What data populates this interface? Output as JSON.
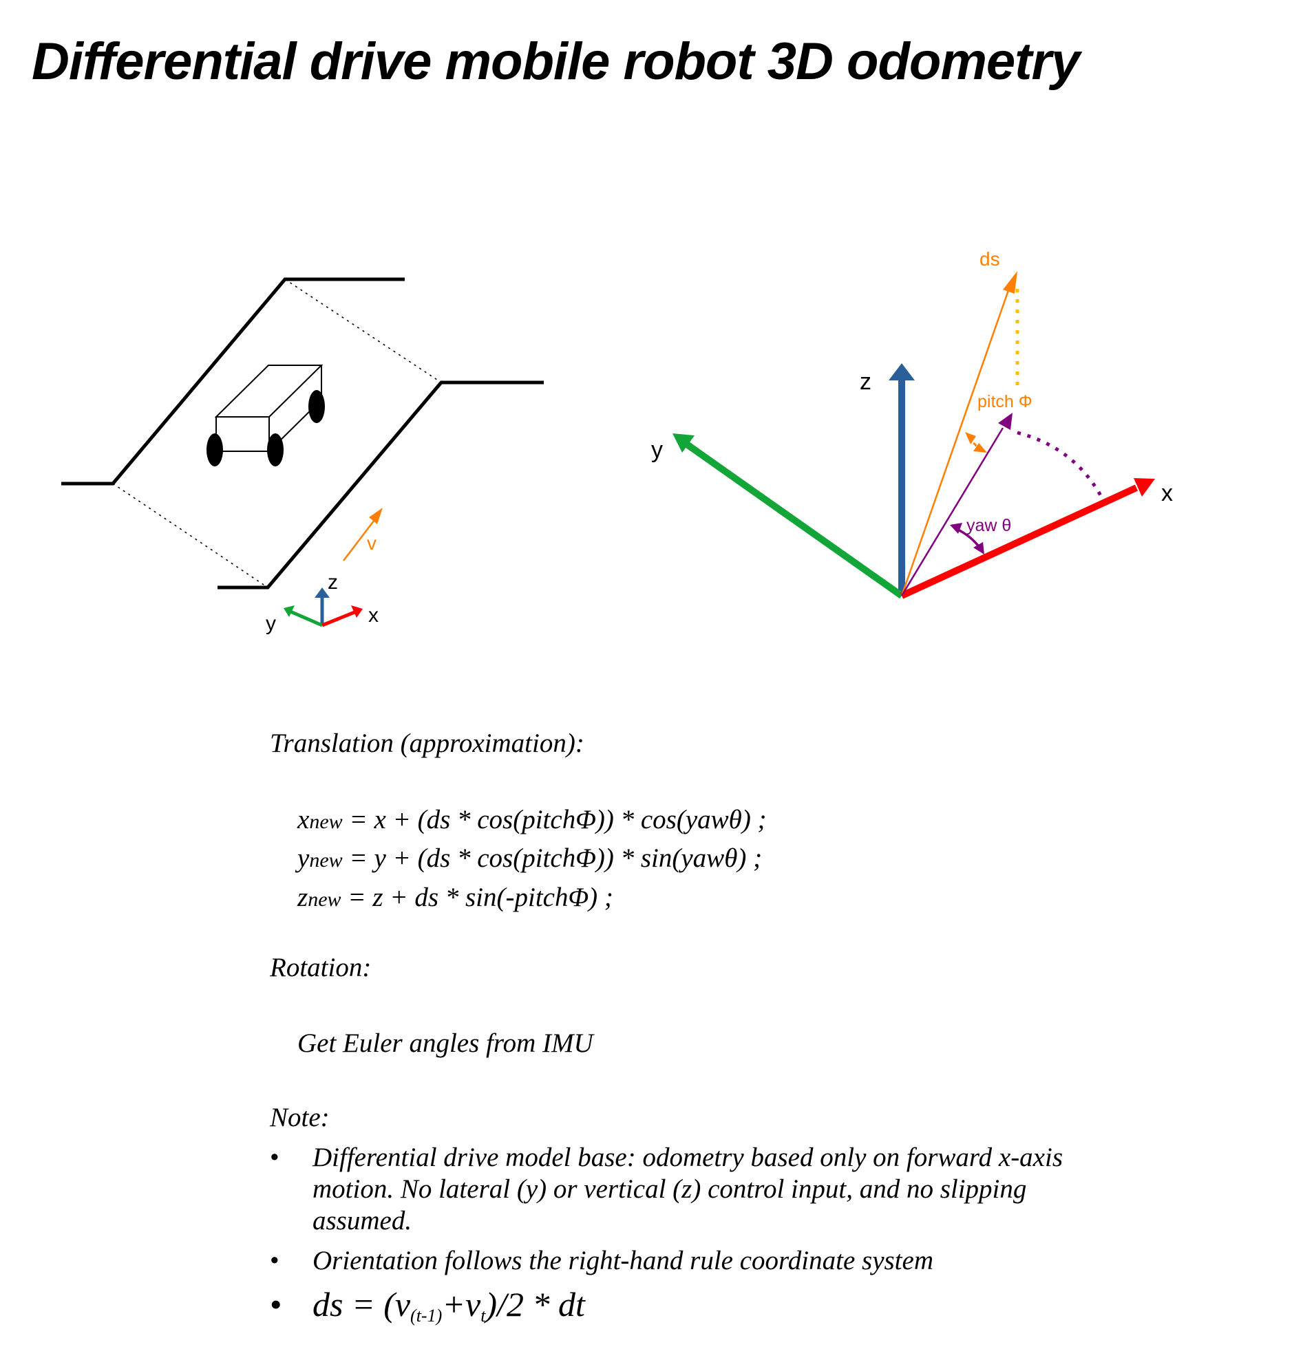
{
  "title": "Differential drive mobile robot 3D odometry",
  "left_diagram": {
    "velocity_label": "v",
    "axis_labels": {
      "x": "x",
      "y": "y",
      "z": "z"
    }
  },
  "right_diagram": {
    "axis_labels": {
      "x": "x",
      "y": "y",
      "z": "z"
    },
    "ds_label": "ds",
    "pitch_label": "pitch Φ",
    "yaw_label": "yaw θ",
    "colors": {
      "x_axis": "#ff0000",
      "y_axis": "#11a637",
      "z_axis": "#2a6099",
      "ds": "#ff8000",
      "pitch_dots": "#ffbf00",
      "projection": "#800080"
    }
  },
  "translation": {
    "heading": "Translation (approximation):",
    "equations": [
      {
        "var": "x",
        "sub": "new",
        "rhs": " = x + (ds * cos(pitchΦ)) * cos(yawθ) ;"
      },
      {
        "var": "y",
        "sub": "new",
        "rhs": " = y + (ds * cos(pitchΦ)) * sin(yawθ) ;"
      },
      {
        "var": "z",
        "sub": "new",
        "rhs": " = z + ds * sin(-pitchΦ) ;"
      }
    ]
  },
  "rotation": {
    "heading": "Rotation:",
    "text": "Get Euler angles from IMU"
  },
  "note": {
    "heading": "Note:",
    "bullet": "•",
    "items": [
      "Differential drive model base: odometry based only on forward x-axis motion. No lateral (y) or vertical (z) control input, and no slipping assumed.",
      "Orientation follows the right-hand rule coordinate system"
    ],
    "ds_formula": {
      "prefix": "ds = (v",
      "sub1": "(t-1)",
      "mid": "+v",
      "sub2": "t",
      "suffix": ")/2 * dt"
    }
  }
}
